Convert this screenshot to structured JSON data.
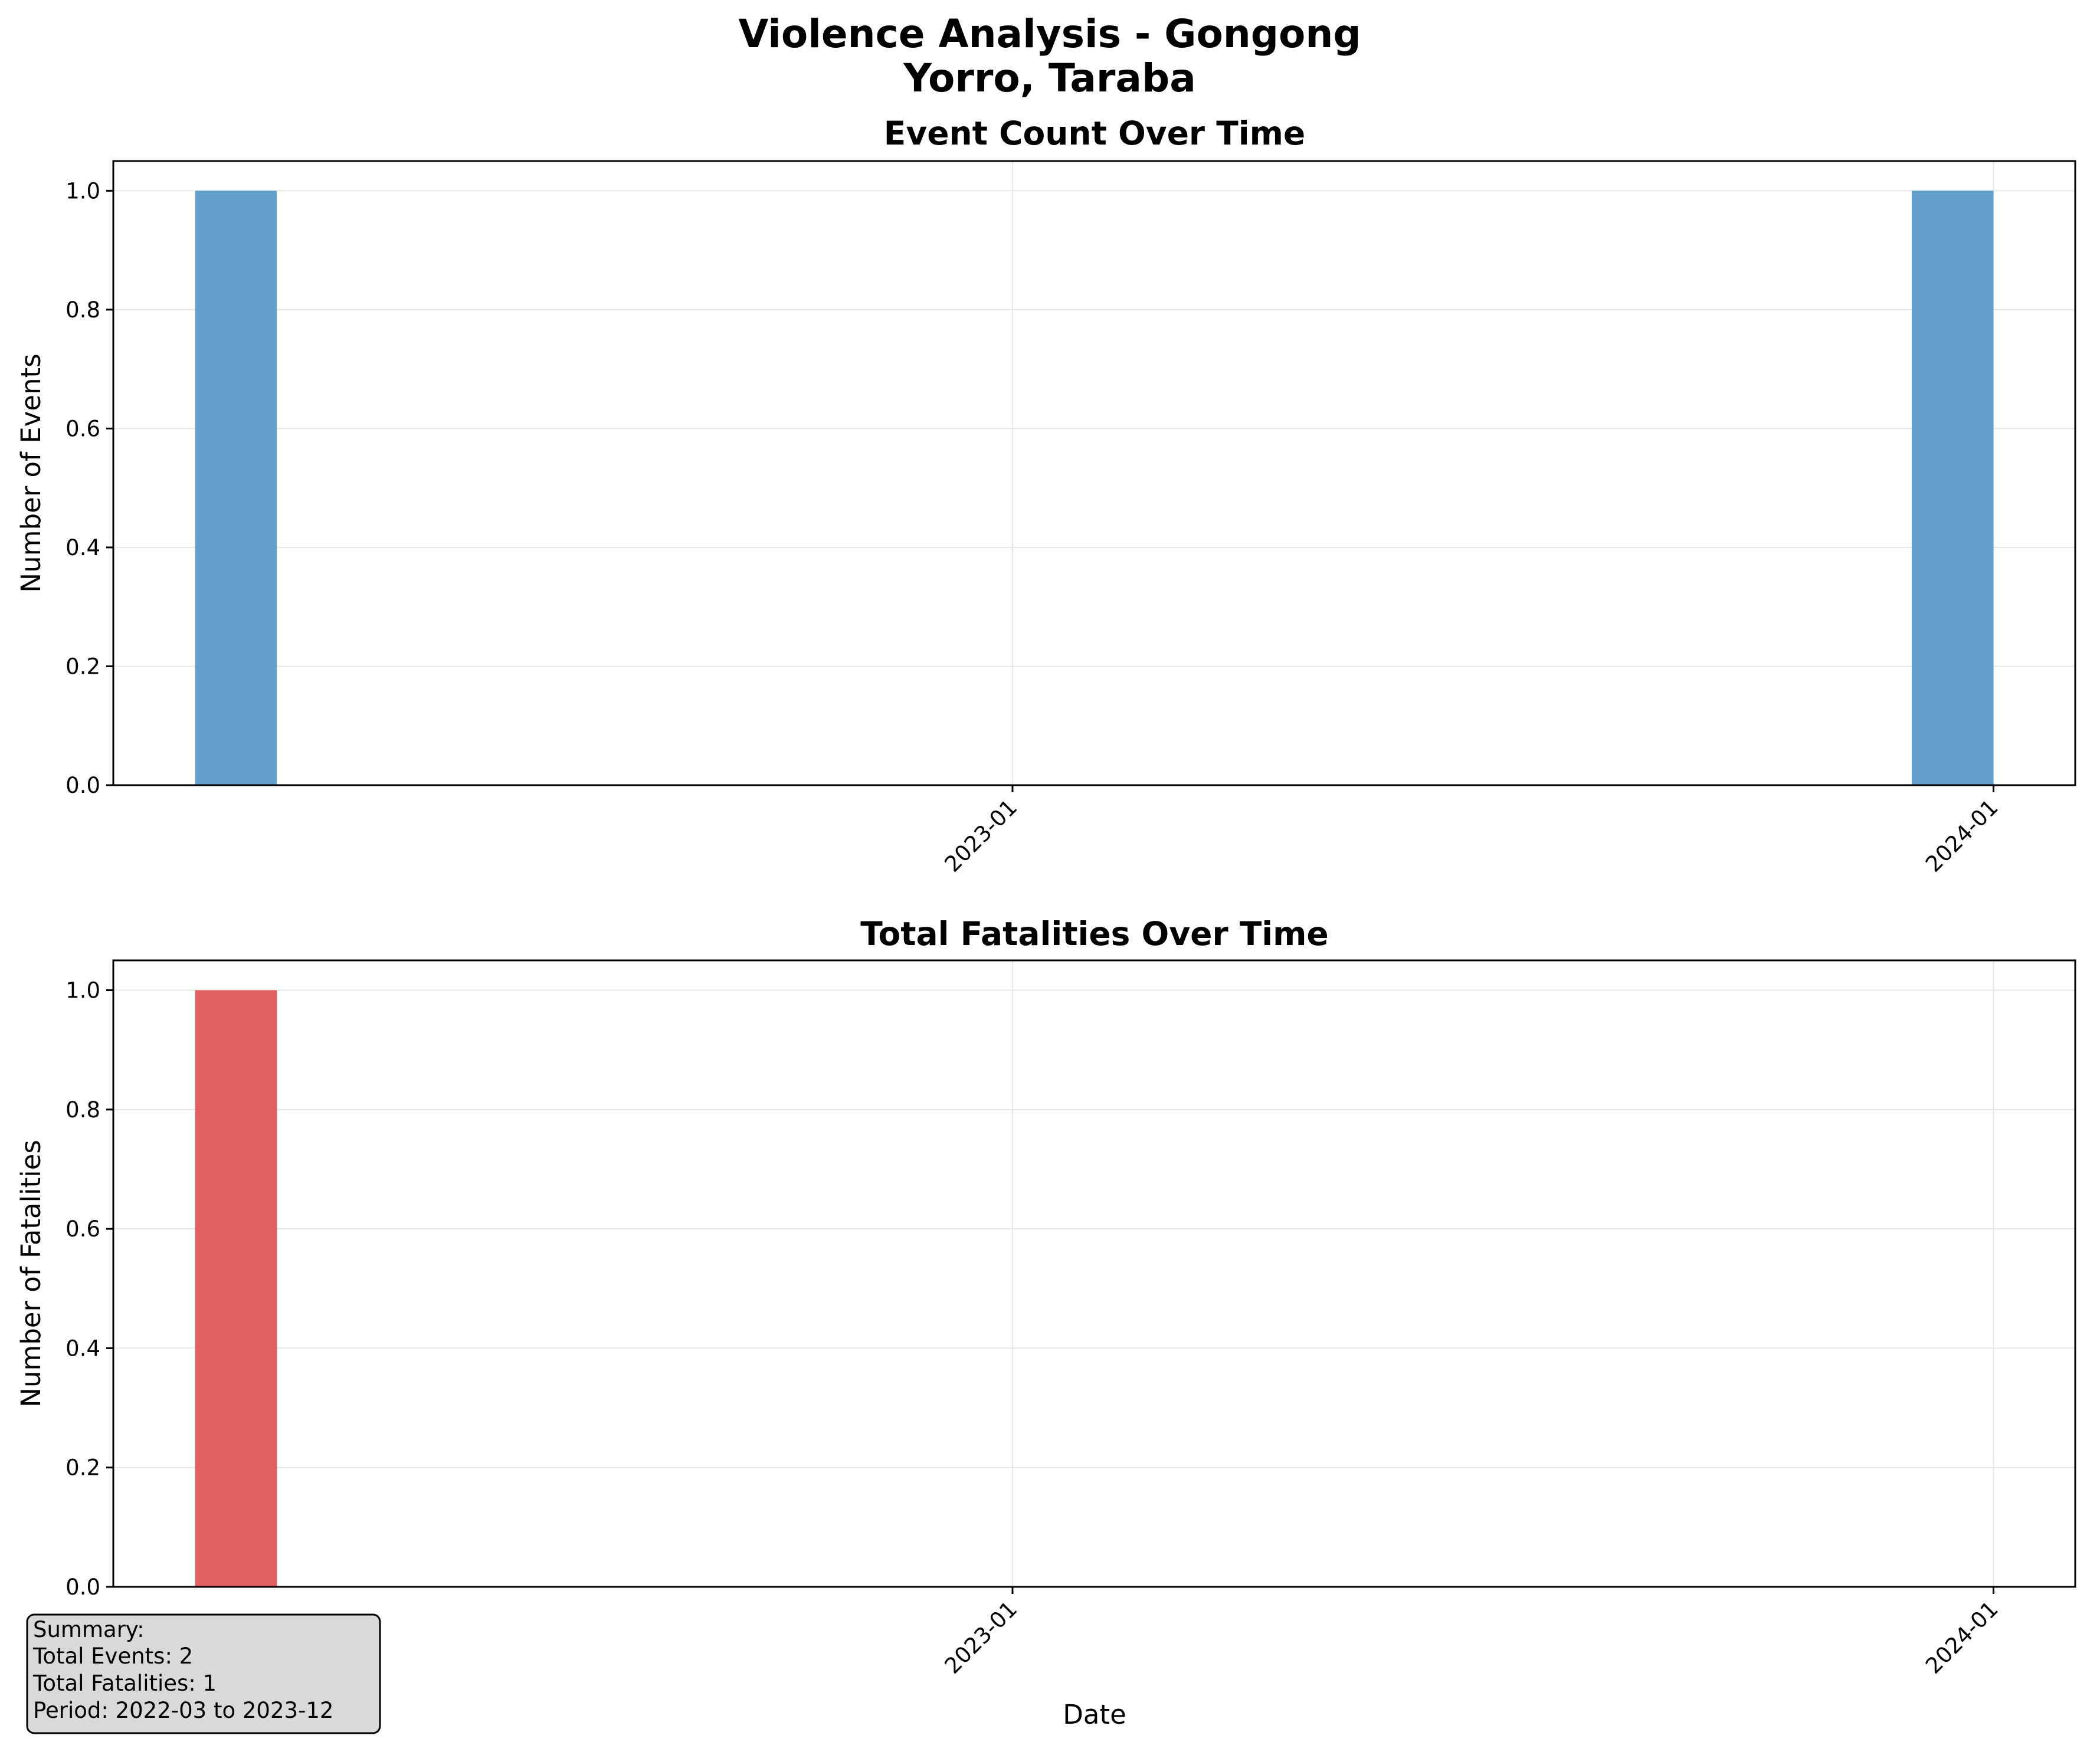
{
  "figure": {
    "title_line1": "Violence Analysis - Gongong",
    "title_line2": "Yorro, Taraba"
  },
  "chart_data": [
    {
      "type": "bar",
      "title": "Event Count Over Time",
      "xlabel": "",
      "ylabel": "Number of Events",
      "x_axis": "date",
      "xlim": [
        "2022-02",
        "2024-02"
      ],
      "ylim": [
        0,
        1.05
      ],
      "xticks": [
        "2023-01",
        "2024-01"
      ],
      "yticks": [
        "0.0",
        "0.2",
        "0.4",
        "0.6",
        "0.8",
        "1.0"
      ],
      "x": [
        "2022-03",
        "2023-12"
      ],
      "values": [
        1,
        1
      ],
      "color": "#5b9bc9",
      "grid": true
    },
    {
      "type": "bar",
      "title": "Total Fatalities Over Time",
      "xlabel": "Date",
      "ylabel": "Number of Fatalities",
      "x_axis": "date",
      "xlim": [
        "2022-02",
        "2024-02"
      ],
      "ylim": [
        0,
        1.05
      ],
      "xticks": [
        "2023-01",
        "2024-01"
      ],
      "yticks": [
        "0.0",
        "0.2",
        "0.4",
        "0.6",
        "0.8",
        "1.0"
      ],
      "x": [
        "2022-03",
        "2023-12"
      ],
      "values": [
        1,
        0
      ],
      "color": "#e15759",
      "grid": true
    }
  ],
  "summary": {
    "heading": "Summary:",
    "total_events": "Total Events: 2",
    "total_fatalities": "Total Fatalities: 1",
    "period": "Period: 2022-03 to 2023-12"
  }
}
